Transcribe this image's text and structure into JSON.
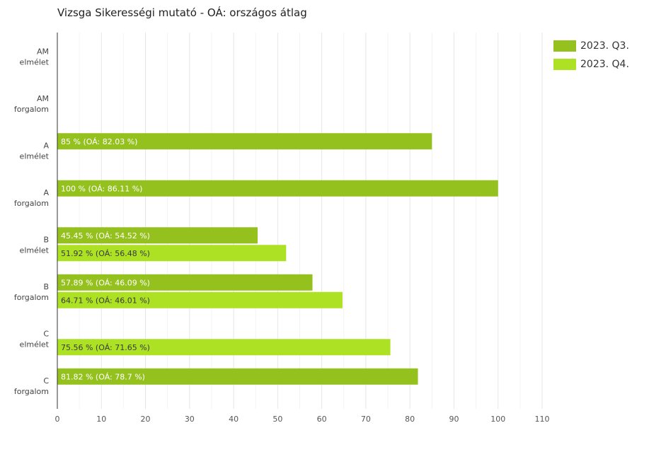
{
  "chart_data": {
    "type": "bar",
    "orientation": "horizontal",
    "title": "Vizsga Sikerességi mutató - OÁ: országos átlag",
    "categories": [
      [
        "AM",
        "elmélet"
      ],
      [
        "AM",
        "forgalom"
      ],
      [
        "A",
        "elmélet"
      ],
      [
        "A",
        "forgalom"
      ],
      [
        "B",
        "elmélet"
      ],
      [
        "B",
        "forgalom"
      ],
      [
        "C",
        "elmélet"
      ],
      [
        "C",
        "forgalom"
      ]
    ],
    "series": [
      {
        "name": "2023. Q3.",
        "color": "#95c11f",
        "label_color": "#ffffff",
        "values": [
          null,
          null,
          85,
          100,
          45.45,
          57.89,
          null,
          81.82
        ],
        "labels": [
          null,
          null,
          "85 % (OÁ: 82.03 %)",
          "100 % (OÁ: 86.11 %)",
          "45.45 % (OÁ: 54.52 %)",
          "57.89 % (OÁ: 46.09 %)",
          null,
          "81.82 % (OÁ: 78.7 %)"
        ]
      },
      {
        "name": "2023. Q4.",
        "color": "#ade124",
        "label_color": "#3a3a3a",
        "values": [
          null,
          null,
          null,
          null,
          51.92,
          64.71,
          75.56,
          null
        ],
        "labels": [
          null,
          null,
          null,
          null,
          "51.92 % (OÁ: 56.48 %)",
          "64.71 % (OÁ: 46.01 %)",
          "75.56 % (OÁ: 71.65 %)",
          null
        ]
      }
    ],
    "xlim": [
      0,
      110
    ],
    "xticks": [
      0,
      10,
      20,
      30,
      40,
      50,
      60,
      70,
      80,
      90,
      100,
      110
    ],
    "grid": true,
    "legend_position": "top-right"
  }
}
